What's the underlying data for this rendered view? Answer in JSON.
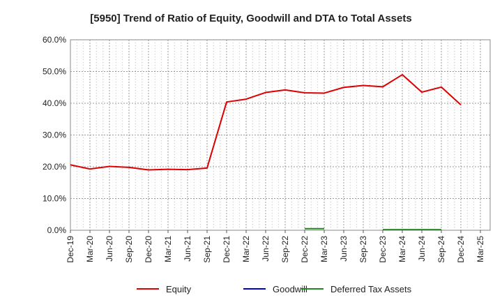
{
  "chart_data": {
    "type": "line",
    "title": "[5950]  Trend of Ratio of Equity, Goodwill and DTA to Total Assets",
    "xlabel": "",
    "ylabel": "",
    "ylim": [
      0,
      60
    ],
    "y_ticks": [
      "0.0%",
      "10.0%",
      "20.0%",
      "30.0%",
      "40.0%",
      "50.0%",
      "60.0%"
    ],
    "y_tick_values": [
      0,
      10,
      20,
      30,
      40,
      50,
      60
    ],
    "x_tick_labels": [
      "Dec-19",
      "Mar-20",
      "Jun-20",
      "Sep-20",
      "Dec-20",
      "Mar-21",
      "Jun-21",
      "Sep-21",
      "Dec-21",
      "Mar-22",
      "Jun-22",
      "Sep-22",
      "Dec-22",
      "Mar-23",
      "Jun-23",
      "Sep-23",
      "Dec-23",
      "Mar-24",
      "Jun-24",
      "Sep-24",
      "Dec-24",
      "Mar-25"
    ],
    "grid": true,
    "legend_position": "bottom",
    "series": [
      {
        "name": "Equity",
        "color": "#dd0000",
        "values": [
          20.6,
          19.3,
          20.1,
          19.8,
          19.0,
          19.2,
          19.1,
          19.6,
          40.4,
          41.3,
          43.4,
          44.2,
          43.3,
          43.2,
          45.0,
          45.6,
          45.2,
          49.0,
          43.5,
          45.1,
          39.5,
          null
        ]
      },
      {
        "name": "Goodwill",
        "color": "#0000cc",
        "values": [
          null,
          null,
          null,
          null,
          null,
          null,
          null,
          null,
          null,
          null,
          null,
          null,
          null,
          null,
          null,
          null,
          null,
          null,
          null,
          null,
          null,
          null
        ]
      },
      {
        "name": "Deferred Tax Assets",
        "color": "#228822",
        "values": [
          null,
          null,
          null,
          null,
          null,
          null,
          null,
          null,
          null,
          null,
          null,
          null,
          0.5,
          0.5,
          null,
          null,
          0.2,
          0.2,
          0.2,
          0.2,
          null,
          null
        ]
      }
    ]
  }
}
